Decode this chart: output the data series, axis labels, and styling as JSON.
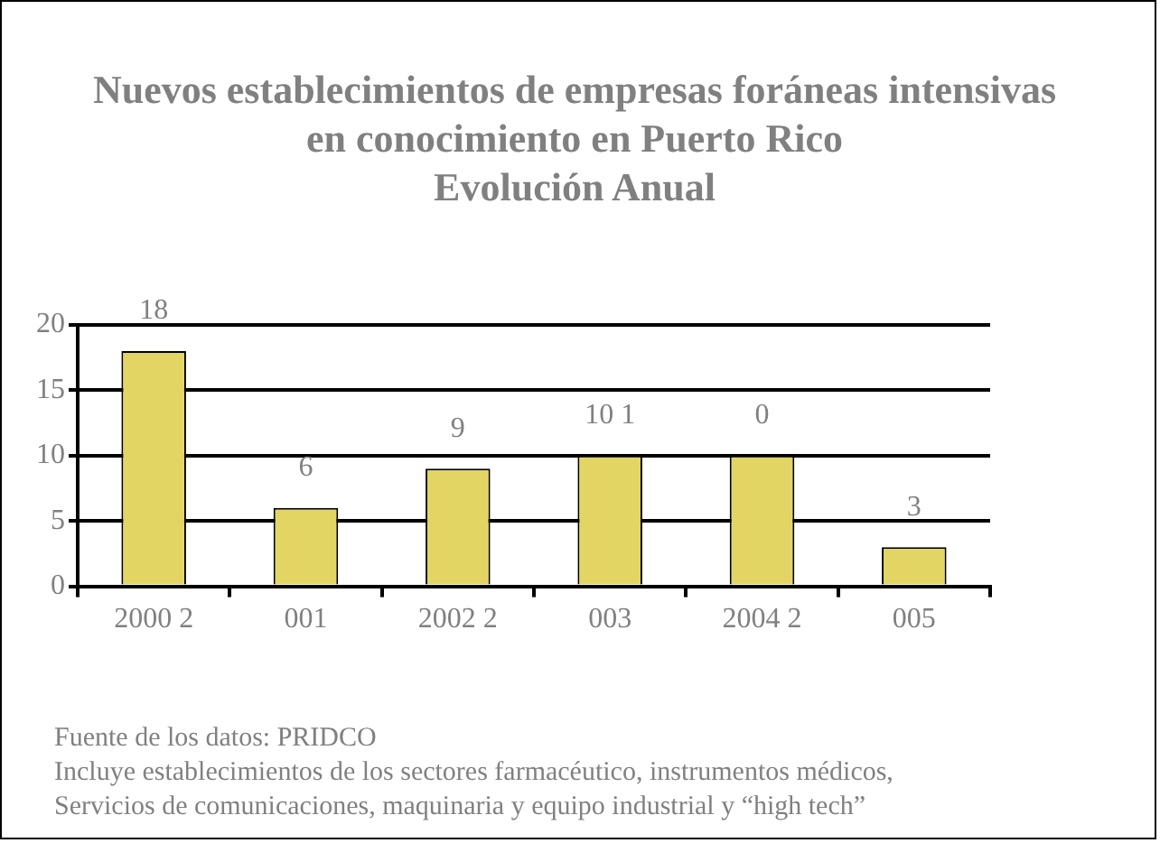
{
  "chart_data": {
    "type": "bar",
    "title": "Nuevos establecimientos de empresas foráneas intensivas en conocimiento en Puerto Rico\nEvolución Anual",
    "categories": [
      "2000 2",
      "001",
      "2002 2",
      "003",
      "2004 2",
      "005"
    ],
    "values": [
      18,
      6,
      9,
      10,
      10,
      3
    ],
    "value_labels": [
      "18",
      "6",
      "9",
      null,
      null,
      "3"
    ],
    "color": "#e2d564",
    "ylim": [
      0,
      20
    ],
    "yticks": [
      0,
      5,
      10,
      15,
      20
    ],
    "grid": "y",
    "legend": false,
    "annotations": [
      {
        "text": "10 1",
        "x": "003",
        "y": 10
      },
      {
        "text": "0",
        "x": "2004 2",
        "y": 10
      },
      "Fuente de los datos: PRIDCO",
      "Incluye establecimientos de los sectores farmacéutico, instrumentos médicos,",
      "Servicios de comunicaciones, maquinaria y equipo industrial y “high tech”"
    ]
  }
}
